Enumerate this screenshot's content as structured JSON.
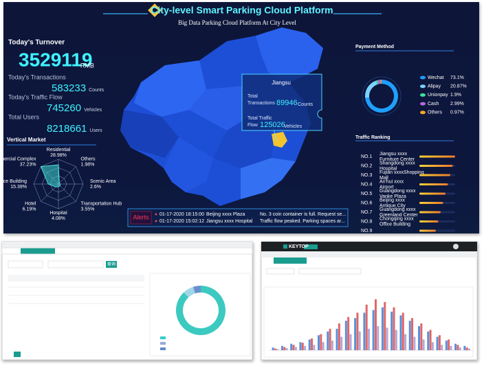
{
  "header": {
    "title": "City-level Smart Parking Cloud Platform",
    "subtitle": "Big Data Parking Cloud Platform At City Level"
  },
  "turnover": {
    "label": "Today's Turnover",
    "value": 3529119,
    "unit": "RMB"
  },
  "stats": [
    {
      "label": "Today's Transactions",
      "value": 583233,
      "unit": "Counts"
    },
    {
      "label": "Today's Traffic Flow",
      "value": 745260,
      "unit": "Vehicles"
    },
    {
      "label": "Total Users",
      "value": 8218661,
      "unit": "Users"
    }
  ],
  "vertical_market": {
    "title": "Vertical Market",
    "segments": [
      {
        "name": "Residential",
        "value": 28.98,
        "label": "28.98%"
      },
      {
        "name": "Others",
        "value": 1.98,
        "label": "1.98%"
      },
      {
        "name": "Scenic Area",
        "value": 2.6,
        "label": "2.6%"
      },
      {
        "name": "Transportation Hub",
        "value": 3.55,
        "label": "3.55%"
      },
      {
        "name": "Hospital",
        "value": 4.08,
        "label": "4.08%"
      },
      {
        "name": "Hotel",
        "value": 6.19,
        "label": "6.19%"
      },
      {
        "name": "Office Building",
        "value": 15.39,
        "label": "15.39%"
      },
      {
        "name": "Commercial Complex",
        "value": 37.23,
        "label": "37.23%"
      }
    ]
  },
  "map_popup": {
    "region": "Jiangsu",
    "transactions_label": "Total Transactions",
    "transactions": 89946,
    "transactions_unit": "Counts",
    "flow_label": "Total Traffic Flow",
    "flow": 125026,
    "flow_unit": "Vehicles"
  },
  "alerts": {
    "title": "Alerts",
    "rows": [
      [
        "01-17-2020 18:15:00",
        "Beijing xxxx Plaza",
        "No. 3 coin container is full. Request se..."
      ],
      [
        "01-17-2020 15:02:12",
        "Jiangsu xxxx Hospital",
        "Traffic flow peaked. Parking spaces ar..."
      ]
    ]
  },
  "payment": {
    "title": "Payment Method",
    "items": [
      {
        "name": "Wechat",
        "value": 73.1,
        "label": "73.1%",
        "color": "#1e9fff"
      },
      {
        "name": "Alipay",
        "value": 20.87,
        "label": "20.87%",
        "color": "#7ad3ff"
      },
      {
        "name": "Unionpay",
        "value": 1.9,
        "label": "1.9%",
        "color": "#3fe0a0"
      },
      {
        "name": "Cash",
        "value": 2.99,
        "label": "2.99%",
        "color": "#b36de0"
      },
      {
        "name": "Others",
        "value": 0.97,
        "label": "0.97%",
        "color": "#f5a623"
      }
    ]
  },
  "ranking": {
    "title": "Traffic Ranking",
    "rows": [
      {
        "rank": "NO.1",
        "name": "Jiangsu xxxx Furniture Center"
      },
      {
        "rank": "NO.2",
        "name": "Shangdong xxxx Hospital"
      },
      {
        "rank": "NO.3",
        "name": "Fujian xxxxShopping Mall"
      },
      {
        "rank": "NO.4",
        "name": "An'hui xxxx Airport"
      },
      {
        "rank": "NO.5",
        "name": "Guangdong xxxx Vanke Plaza"
      },
      {
        "rank": "NO.6",
        "name": "Beijing xxxx Antique City"
      },
      {
        "rank": "NO.7",
        "name": "Guangdong xxxx Greenland Center"
      },
      {
        "rank": "NO.8",
        "name": "Chongqing xxxx Office Building"
      },
      {
        "rank": "NO.9"
      }
    ]
  },
  "left_screen": {
    "button": "查询",
    "donut": [
      88,
      7,
      5
    ]
  },
  "right_screen": {
    "brand": "KEYTOP",
    "ylim": [
      0,
      100
    ],
    "series": [
      {
        "color": "#5b8fd9",
        "values": [
          5,
          8,
          12,
          15,
          20,
          28,
          35,
          40,
          55,
          60,
          70,
          75,
          80,
          72,
          65,
          55,
          45,
          35,
          25,
          18,
          12,
          8
        ]
      },
      {
        "color": "#e06666",
        "values": [
          3,
          6,
          10,
          14,
          22,
          30,
          40,
          50,
          62,
          70,
          85,
          95,
          90,
          80,
          70,
          60,
          50,
          38,
          28,
          20,
          10,
          5
        ]
      },
      {
        "color": "#b4a7d6",
        "values": [
          2,
          4,
          6,
          8,
          10,
          15,
          18,
          25,
          30,
          35,
          40,
          45,
          42,
          38,
          30,
          25,
          20,
          15,
          10,
          8,
          5,
          3
        ]
      }
    ]
  }
}
